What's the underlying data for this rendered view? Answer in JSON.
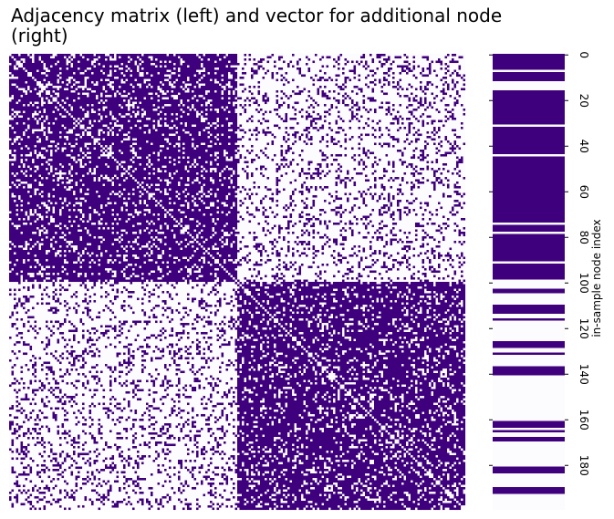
{
  "chart_data": {
    "type": "heatmap",
    "title": "Adjacency matrix (left) and vector for additional node (right)",
    "panels": [
      {
        "name": "adjacency-matrix",
        "rows": 200,
        "cols": 200,
        "blocks": [
          {
            "rows": [
              0,
              99
            ],
            "cols": [
              0,
              99
            ],
            "edge_density": 0.8
          },
          {
            "rows": [
              0,
              99
            ],
            "cols": [
              100,
              199
            ],
            "edge_density": 0.2
          },
          {
            "rows": [
              100,
              199
            ],
            "cols": [
              0,
              99
            ],
            "edge_density": 0.2
          },
          {
            "rows": [
              100,
              199
            ],
            "cols": [
              100,
              199
            ],
            "edge_density": 0.8
          }
        ],
        "diagonal": 0
      },
      {
        "name": "additional-node-vector",
        "rows": 200,
        "connected_rows": [
          0,
          1,
          2,
          3,
          4,
          5,
          6,
          8,
          9,
          10,
          11,
          16,
          17,
          18,
          19,
          20,
          21,
          22,
          23,
          24,
          25,
          26,
          27,
          28,
          29,
          30,
          32,
          33,
          34,
          35,
          36,
          37,
          38,
          39,
          40,
          41,
          42,
          43,
          45,
          46,
          47,
          48,
          49,
          50,
          51,
          52,
          53,
          54,
          55,
          56,
          57,
          58,
          59,
          60,
          61,
          62,
          63,
          64,
          65,
          66,
          67,
          68,
          69,
          70,
          71,
          72,
          73,
          75,
          76,
          77,
          79,
          80,
          81,
          82,
          83,
          84,
          85,
          86,
          87,
          88,
          89,
          90,
          92,
          93,
          94,
          95,
          96,
          97,
          98,
          103,
          104,
          110,
          111,
          112,
          113,
          116,
          126,
          127,
          128,
          131,
          137,
          138,
          139,
          140,
          161,
          162,
          163,
          165,
          168,
          169,
          181,
          182,
          183,
          190,
          191,
          192
        ]
      }
    ],
    "vector_ylabel": "in-sample node index",
    "vector_yticks": [
      0,
      20,
      40,
      60,
      80,
      100,
      120,
      140,
      160,
      180
    ],
    "colors": {
      "edge": "#3f007d",
      "no_edge": "#fcfbfd"
    },
    "colorbar": false
  }
}
